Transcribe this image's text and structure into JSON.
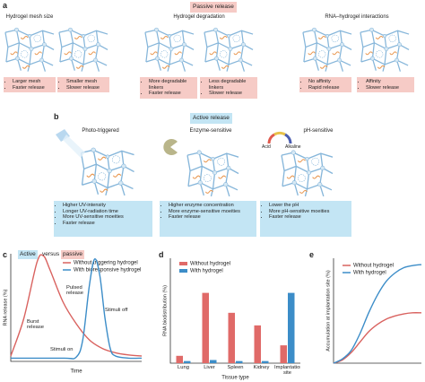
{
  "panel_a": {
    "label": "a",
    "title": "Passive release",
    "columns": [
      {
        "heading": "Hydrogel mesh size",
        "captions": [
          [
            "Larger mesh",
            "Faster release"
          ],
          [
            "Smaller mesh",
            "Slower release"
          ]
        ]
      },
      {
        "heading": "Hydrogel degradation",
        "captions": [
          [
            "More degradable linkers",
            "Faster release"
          ],
          [
            "Less degradable linkers",
            "Slower release"
          ]
        ]
      },
      {
        "heading": "RNA–hydrogel interactions",
        "captions": [
          [
            "No affinity",
            "Rapid release"
          ],
          [
            "Affinity",
            "Slower release"
          ]
        ]
      }
    ]
  },
  "panel_b": {
    "label": "b",
    "title": "Active release",
    "columns": [
      {
        "heading": "Photo-triggered",
        "caption": [
          "Higher UV-intensity",
          "Longer UV-radiation time",
          "More UV-sensitive moeities",
          "Faster release"
        ]
      },
      {
        "heading": "Enzyme-sensitive",
        "caption": [
          "Higher enzyme concentration",
          "More enzyme-sensitive moeities",
          "Faster release"
        ]
      },
      {
        "heading": "pH-sensitive",
        "gauge": [
          "Acid",
          "Alkaline"
        ],
        "caption": [
          "Lower the pH",
          "More pH-sensitive moeities",
          "Faster release"
        ]
      }
    ]
  },
  "chart_data": [
    {
      "type": "line",
      "label": "c",
      "title": [
        "Active",
        "versus",
        "passive"
      ],
      "xlabel": "Time",
      "ylabel": "RNA release (%)",
      "xlim": [
        0,
        10
      ],
      "ylim": [
        0,
        100
      ],
      "series": [
        {
          "name": "Without triggering hydrogel",
          "color": "#d9625f",
          "x": [
            0,
            1,
            2,
            2.5,
            3,
            4,
            5,
            6,
            7,
            8,
            9,
            10
          ],
          "values": [
            5,
            40,
            92,
            98,
            85,
            55,
            35,
            20,
            12,
            8,
            6,
            5
          ]
        },
        {
          "name": "With bioresponsive hydrogel",
          "color": "#3c8dc8",
          "x": [
            0,
            4,
            5,
            5.5,
            6,
            6.4,
            6.8,
            7.2,
            7.6,
            8,
            9,
            10
          ],
          "values": [
            3,
            3,
            4,
            20,
            70,
            95,
            80,
            40,
            12,
            5,
            3,
            3
          ]
        }
      ],
      "annotations": [
        "Burst release",
        "Pulsed release",
        "Stimuli off",
        "Stimuli on"
      ]
    },
    {
      "type": "bar",
      "label": "d",
      "xlabel": "Tissue type",
      "ylabel": "RNA biodistribution (%)",
      "categories": [
        "Lung",
        "Liver",
        "Spleen",
        "Kidney",
        "Implantation site"
      ],
      "ylim": [
        0,
        100
      ],
      "series": [
        {
          "name": "Without hydrogel",
          "color": "#e06a68",
          "values": [
            7,
            67,
            48,
            36,
            17
          ]
        },
        {
          "name": "With hydrogel",
          "color": "#3c8dc8",
          "values": [
            2,
            3,
            2,
            2,
            67
          ]
        }
      ]
    },
    {
      "type": "line",
      "label": "e",
      "ylabel": "Accumulation at implantation site (%)",
      "xlim": [
        0,
        10
      ],
      "ylim": [
        0,
        100
      ],
      "series": [
        {
          "name": "Without hydrogel",
          "color": "#d9625f",
          "x": [
            0,
            1,
            2,
            3,
            4,
            5,
            6,
            7,
            8,
            9,
            10
          ],
          "values": [
            0,
            3,
            10,
            20,
            30,
            37,
            42,
            45,
            47,
            48,
            48
          ]
        },
        {
          "name": "With hydrogel",
          "color": "#3c8dc8",
          "x": [
            0,
            1,
            2,
            3,
            4,
            5,
            6,
            7,
            8,
            9,
            10
          ],
          "values": [
            0,
            4,
            12,
            28,
            48,
            65,
            78,
            86,
            91,
            93,
            94
          ]
        }
      ]
    }
  ]
}
